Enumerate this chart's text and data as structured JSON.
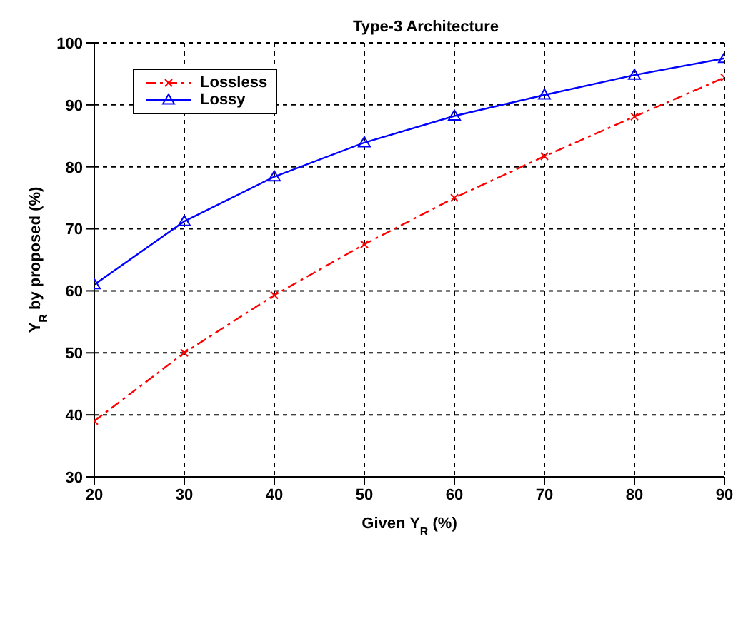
{
  "chart_data": {
    "type": "line",
    "title": "Type-3 Architecture",
    "xlabel": "Given Y$_{R}$ (%)",
    "ylabel": "Y$_{R}$ by proposed (%)",
    "x": [
      20,
      30,
      40,
      50,
      60,
      70,
      80,
      90
    ],
    "series": [
      {
        "name": "Lossless",
        "color": "#ff0000",
        "values": [
          39,
          50,
          59.3,
          67.5,
          75,
          81.7,
          88.1,
          94.4
        ],
        "marker": "cross",
        "line_style": "dashdot"
      },
      {
        "name": "Lossy",
        "color": "#0000ff",
        "values": [
          61,
          71.2,
          78.4,
          83.9,
          88.2,
          91.6,
          94.8,
          97.5
        ],
        "marker": "triangle",
        "line_style": "solid"
      }
    ],
    "xlim": [
      20,
      90
    ],
    "xticks": [
      20,
      30,
      40,
      50,
      60,
      70,
      80,
      90
    ],
    "ylim": [
      30,
      100
    ],
    "yticks": [
      30,
      40,
      50,
      60,
      70,
      80,
      90,
      100
    ],
    "grid": true,
    "legend": "top left"
  }
}
